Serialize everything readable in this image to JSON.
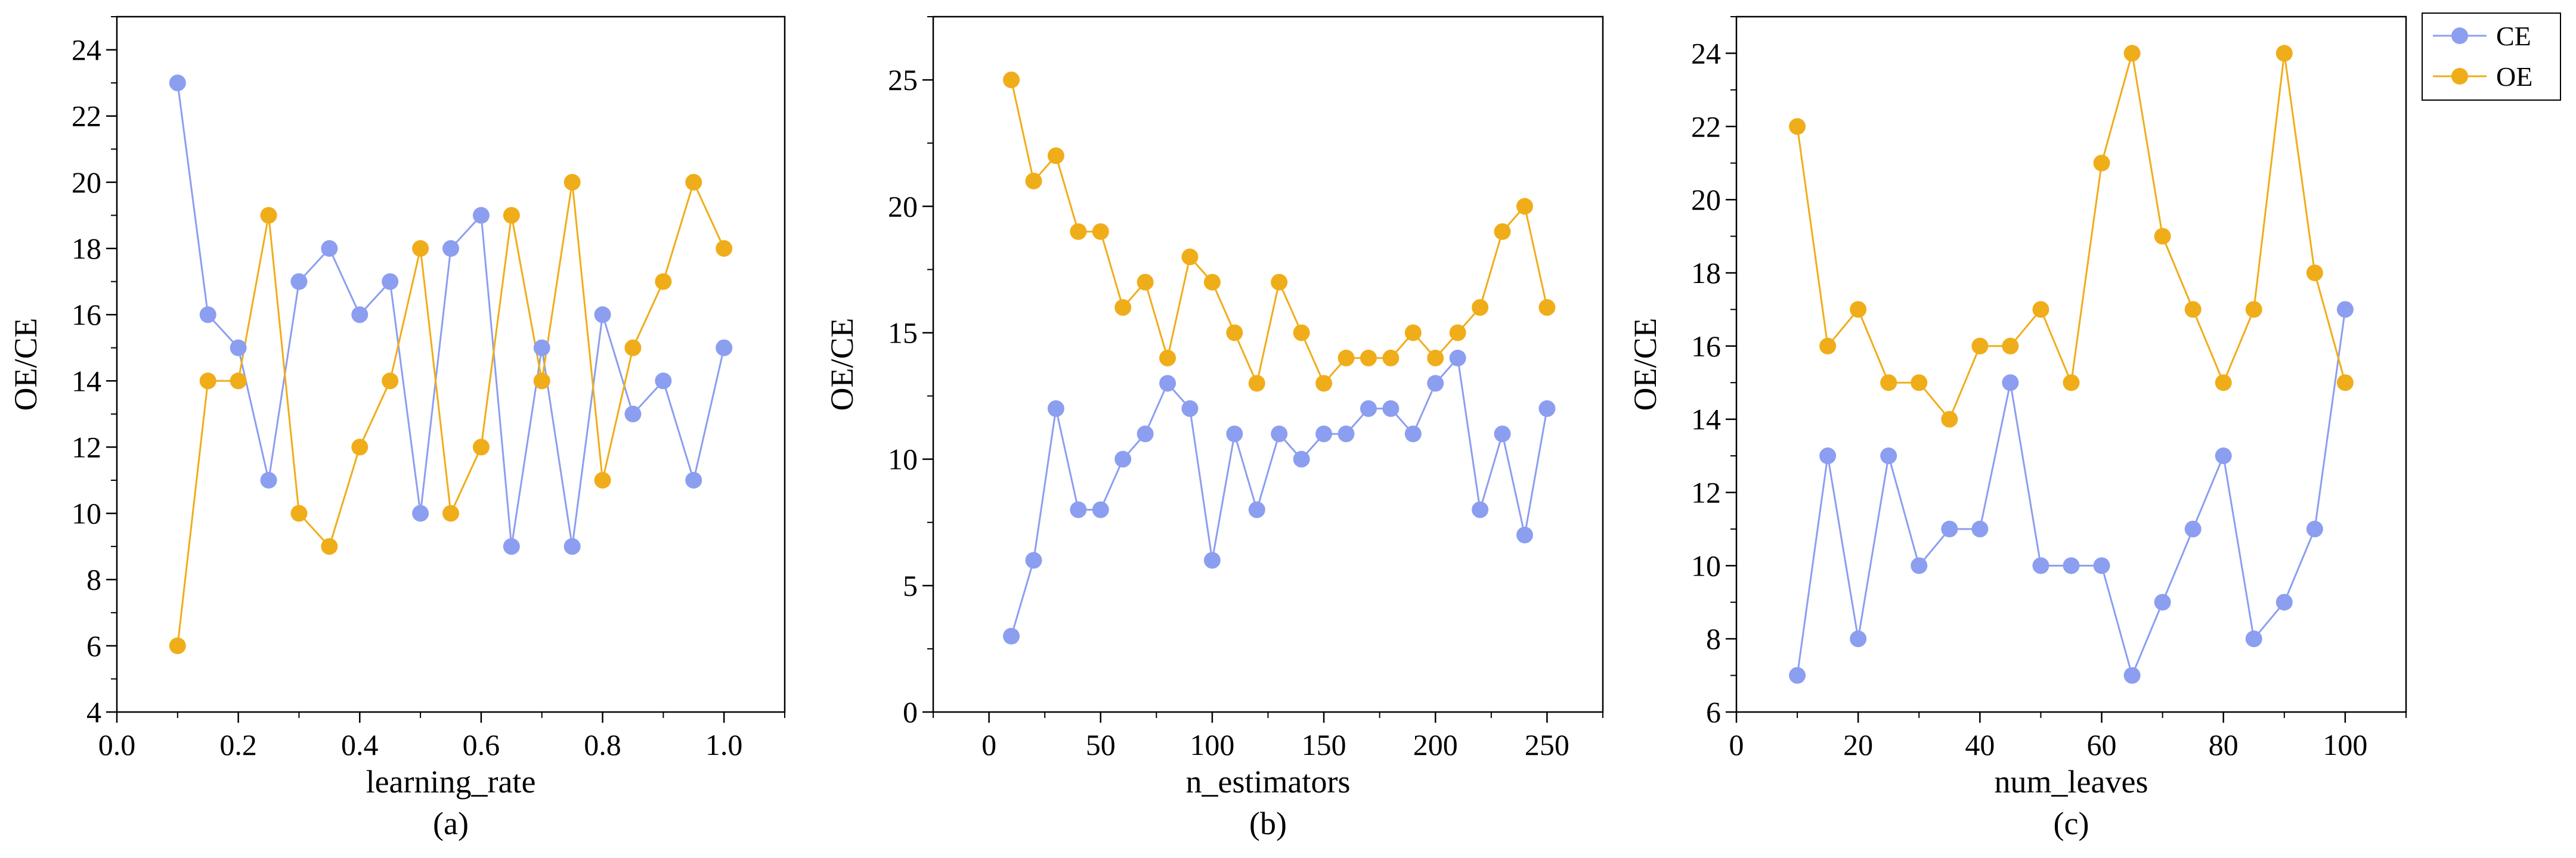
{
  "legend": {
    "placement": "top-right",
    "entries": [
      "CE",
      "OE"
    ]
  },
  "colors": {
    "CE": "#8c9ef0",
    "OE": "#f0ad1a"
  },
  "chart_data": [
    {
      "type": "line",
      "panel_label": "(a)",
      "xlabel": "learning_rate",
      "ylabel": "OE/CE",
      "xlim": [
        0.0,
        1.1
      ],
      "ylim": [
        4,
        25
      ],
      "xticks": [
        "0.0",
        "0.2",
        "0.4",
        "0.6",
        "0.8",
        "1.0"
      ],
      "yticks": [
        "4",
        "6",
        "8",
        "10",
        "12",
        "14",
        "16",
        "18",
        "20",
        "22",
        "24"
      ],
      "x": [
        0.1,
        0.15,
        0.2,
        0.25,
        0.3,
        0.35,
        0.4,
        0.45,
        0.5,
        0.55,
        0.6,
        0.65,
        0.7,
        0.75,
        0.8,
        0.85,
        0.9,
        0.95,
        1.0
      ],
      "series": [
        {
          "name": "CE",
          "values": [
            23,
            16,
            15,
            11,
            17,
            18,
            16,
            17,
            10,
            18,
            19,
            9,
            15,
            9,
            16,
            13,
            14,
            11,
            15
          ]
        },
        {
          "name": "OE",
          "values": [
            6,
            14,
            14,
            19,
            10,
            9,
            12,
            14,
            18,
            10,
            12,
            19,
            14,
            20,
            11,
            15,
            17,
            20,
            18
          ]
        }
      ]
    },
    {
      "type": "line",
      "panel_label": "(b)",
      "xlabel": "n_estimators",
      "ylabel": "OE/CE",
      "xlim": [
        -25,
        275
      ],
      "ylim": [
        0,
        27.5
      ],
      "xticks": [
        "0",
        "50",
        "100",
        "150",
        "200",
        "250"
      ],
      "yticks": [
        "0",
        "5",
        "10",
        "15",
        "20",
        "25"
      ],
      "x": [
        10,
        20,
        30,
        40,
        50,
        60,
        70,
        80,
        90,
        100,
        110,
        120,
        130,
        140,
        150,
        160,
        170,
        180,
        190,
        200,
        210,
        220,
        230,
        240,
        250
      ],
      "series": [
        {
          "name": "CE",
          "values": [
            3,
            6,
            12,
            8,
            8,
            10,
            11,
            13,
            12,
            6,
            11,
            8,
            11,
            10,
            11,
            11,
            12,
            12,
            11,
            13,
            14,
            8,
            11,
            7,
            12
          ]
        },
        {
          "name": "OE",
          "values": [
            25,
            21,
            22,
            19,
            19,
            16,
            17,
            14,
            18,
            17,
            15,
            13,
            17,
            15,
            13,
            14,
            14,
            14,
            15,
            14,
            15,
            16,
            19,
            20,
            16
          ]
        }
      ]
    },
    {
      "type": "line",
      "panel_label": "(c)",
      "xlabel": "num_leaves",
      "ylabel": "OE/CE",
      "xlim": [
        0,
        110
      ],
      "ylim": [
        6,
        25
      ],
      "xticks": [
        "0",
        "20",
        "40",
        "60",
        "80",
        "100"
      ],
      "yticks": [
        "6",
        "8",
        "10",
        "12",
        "14",
        "16",
        "18",
        "20",
        "22",
        "24"
      ],
      "x": [
        10,
        15,
        20,
        25,
        30,
        35,
        40,
        45,
        50,
        55,
        60,
        65,
        70,
        75,
        80,
        85,
        90,
        95,
        100
      ],
      "series": [
        {
          "name": "CE",
          "values": [
            7,
            13,
            8,
            13,
            10,
            11,
            11,
            15,
            10,
            10,
            10,
            7,
            9,
            11,
            13,
            8,
            9,
            11,
            17
          ]
        },
        {
          "name": "OE",
          "values": [
            22,
            16,
            17,
            15,
            15,
            14,
            16,
            16,
            17,
            15,
            21,
            24,
            19,
            17,
            15,
            17,
            24,
            18,
            15
          ]
        }
      ]
    }
  ]
}
